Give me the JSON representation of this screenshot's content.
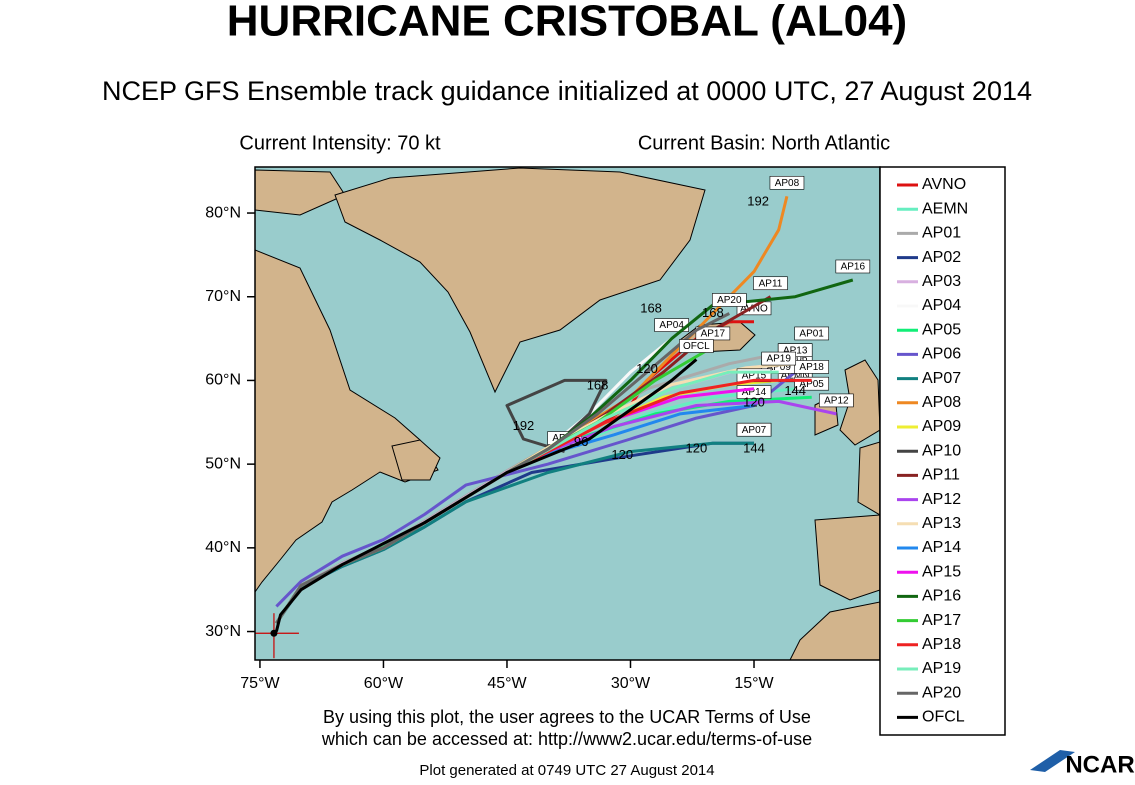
{
  "chart_data": {
    "type": "track-map",
    "title": "HURRICANE CRISTOBAL (AL04)",
    "subtitle": "NCEP GFS Ensemble track guidance initialized at 0000 UTC, 27 August 2014",
    "intensity_label": "Current Intensity: 70 kt",
    "basin_label": "Current Basin: North Atlantic",
    "terms_line1": "By using this plot, the user agrees to the UCAR Terms of Use",
    "terms_line2": "which can be accessed at: http://www2.ucar.edu/terms-of-use",
    "generated": "Plot generated at 0749 UTC   27 August 2014",
    "logo": "NCAR",
    "xlim": [
      -75.6,
      0.3
    ],
    "ylim": [
      26.6,
      85.5
    ],
    "xticks": [
      {
        "value": -75,
        "label": "75°W"
      },
      {
        "value": -60,
        "label": "60°W"
      },
      {
        "value": -45,
        "label": "45°W"
      },
      {
        "value": -30,
        "label": "30°W"
      },
      {
        "value": -15,
        "label": "15°W"
      }
    ],
    "yticks": [
      {
        "value": 30,
        "label": "30°N"
      },
      {
        "value": 40,
        "label": "40°N"
      },
      {
        "value": 50,
        "label": "50°N"
      },
      {
        "value": 60,
        "label": "60°N"
      },
      {
        "value": 70,
        "label": "70°N"
      },
      {
        "value": 80,
        "label": "80°N"
      }
    ],
    "current_position": {
      "lon": -73.3,
      "lat": 29.8
    },
    "series": [
      {
        "name": "AVNO",
        "color": "#dd1111",
        "lon": [
          -73,
          -70,
          -65,
          -60,
          -55,
          -50,
          -45,
          -40,
          -35,
          -30,
          -28,
          -25,
          -22,
          -18,
          -15
        ],
        "lat": [
          31,
          35.5,
          38,
          40,
          43,
          46,
          49,
          51.5,
          54,
          57,
          60,
          62.5,
          65,
          67,
          67
        ]
      },
      {
        "name": "AEMN",
        "color": "#66eec0",
        "lon": [
          -73,
          -70,
          -65,
          -60,
          -55,
          -50,
          -45,
          -40,
          -35,
          -28,
          -20,
          -10
        ],
        "lat": [
          31,
          35.5,
          38,
          40,
          43,
          46,
          49,
          51.5,
          53,
          56,
          58,
          59
        ]
      },
      {
        "name": "AP01",
        "color": "#aaaaaa",
        "lon": [
          -73,
          -70,
          -65,
          -60,
          -55,
          -50,
          -45,
          -40,
          -34,
          -28,
          -18,
          -8
        ],
        "lat": [
          31,
          35.5,
          38.2,
          40.3,
          43.2,
          46.2,
          49.2,
          52,
          55.5,
          59,
          62,
          64
        ]
      },
      {
        "name": "AP02",
        "color": "#1f3a8a",
        "lon": [
          -73,
          -70,
          -65,
          -60,
          -55,
          -50,
          -42,
          -30,
          -20,
          -15
        ],
        "lat": [
          31,
          35.3,
          37.8,
          39.8,
          42.5,
          45.5,
          49,
          51,
          52.5,
          52.5
        ]
      },
      {
        "name": "AP03",
        "color": "#d8b0e0",
        "lon": [
          -73,
          -70,
          -65,
          -60,
          -55,
          -50,
          -45,
          -40,
          -33,
          -25,
          -16,
          -10
        ],
        "lat": [
          31,
          35.5,
          38.1,
          40.2,
          43.1,
          46.1,
          49.1,
          51.8,
          55.5,
          59,
          61.5,
          62
        ]
      },
      {
        "name": "AP04",
        "color": "#f8f8f8",
        "lon": [
          -73,
          -70,
          -65,
          -60,
          -55,
          -50,
          -45,
          -40,
          -35,
          -30,
          -25
        ],
        "lat": [
          31,
          35.4,
          38,
          40,
          43,
          46,
          49,
          52,
          56,
          61,
          65
        ]
      },
      {
        "name": "AP05",
        "color": "#11ee77",
        "lon": [
          -73,
          -70,
          -65,
          -60,
          -55,
          -50,
          -45,
          -40,
          -35,
          -27,
          -18,
          -8
        ],
        "lat": [
          31,
          35.5,
          38,
          40.1,
          43,
          46,
          49,
          51.6,
          53.5,
          56,
          57.5,
          58
        ]
      },
      {
        "name": "AP06",
        "color": "#6655cc",
        "lon": [
          -73,
          -70,
          -65,
          -60,
          -55,
          -50,
          -40,
          -30,
          -22,
          -15,
          -10
        ],
        "lat": [
          33,
          36,
          39,
          41,
          44,
          47.5,
          50,
          53,
          55.5,
          57,
          61
        ]
      },
      {
        "name": "AP07",
        "color": "#118080",
        "lon": [
          -73,
          -70,
          -65,
          -60,
          -55,
          -50,
          -40,
          -30,
          -20,
          -15
        ],
        "lat": [
          31,
          35.3,
          37.8,
          39.8,
          42.5,
          45.5,
          49,
          51.5,
          52.5,
          52.5
        ]
      },
      {
        "name": "AP08",
        "color": "#ee8822",
        "lon": [
          -73,
          -70,
          -65,
          -60,
          -55,
          -50,
          -45,
          -40,
          -30,
          -25,
          -20,
          -15,
          -12,
          -11
        ],
        "lat": [
          31,
          35.5,
          38,
          40,
          43,
          46,
          49,
          52,
          58,
          63,
          68,
          73,
          78,
          82
        ]
      },
      {
        "name": "AP09",
        "color": "#eeee33",
        "lon": [
          -73,
          -70,
          -65,
          -60,
          -55,
          -50,
          -45,
          -40,
          -34,
          -26,
          -18,
          -12
        ],
        "lat": [
          31,
          35.5,
          38,
          40,
          43,
          46,
          49,
          51.5,
          54.5,
          58,
          59.5,
          60
        ]
      },
      {
        "name": "AP10",
        "color": "#444444",
        "lon": [
          -73,
          -70,
          -65,
          -60,
          -55,
          -50,
          -45,
          -40,
          -35,
          -33,
          -38,
          -45,
          -43,
          -38
        ],
        "lat": [
          31,
          35.5,
          38,
          40,
          43,
          46,
          49,
          51.5,
          56,
          60,
          60,
          57,
          53,
          51.5
        ]
      },
      {
        "name": "AP11",
        "color": "#882222",
        "lon": [
          -73,
          -70,
          -65,
          -60,
          -55,
          -50,
          -45,
          -40,
          -33,
          -26,
          -20,
          -13
        ],
        "lat": [
          31,
          35.5,
          38,
          40,
          43,
          46,
          49,
          51.6,
          56,
          61,
          66,
          70
        ]
      },
      {
        "name": "AP12",
        "color": "#aa44ee",
        "lon": [
          -73,
          -70,
          -65,
          -60,
          -55,
          -50,
          -45,
          -40,
          -32,
          -22,
          -12,
          -5
        ],
        "lat": [
          31,
          35.5,
          38,
          40,
          43,
          46,
          49,
          51.5,
          54.5,
          57,
          57.5,
          56
        ]
      },
      {
        "name": "AP13",
        "color": "#f5deb3",
        "lon": [
          -73,
          -70,
          -65,
          -60,
          -55,
          -50,
          -45,
          -40,
          -33,
          -25,
          -16,
          -10
        ],
        "lat": [
          31,
          35.5,
          38,
          40,
          43,
          46,
          49,
          52,
          55.8,
          59.5,
          61.5,
          62
        ]
      },
      {
        "name": "AP14",
        "color": "#2288ee",
        "lon": [
          -73,
          -70,
          -65,
          -60,
          -55,
          -50,
          -45,
          -40,
          -32,
          -24,
          -15
        ],
        "lat": [
          31,
          35.5,
          38,
          40,
          43,
          46,
          49,
          51.2,
          53.5,
          56,
          57
        ]
      },
      {
        "name": "AP15",
        "color": "#ee11ee",
        "lon": [
          -73,
          -70,
          -65,
          -60,
          -55,
          -50,
          -45,
          -40,
          -33,
          -24,
          -15
        ],
        "lat": [
          31,
          35.5,
          38,
          40,
          43,
          46,
          49,
          51.5,
          55,
          58,
          59
        ]
      },
      {
        "name": "AP16",
        "color": "#116611",
        "lon": [
          -73,
          -70,
          -65,
          -60,
          -55,
          -50,
          -45,
          -40,
          -35,
          -30,
          -25,
          -20,
          -10,
          -3
        ],
        "lat": [
          31,
          35.5,
          38,
          40,
          43,
          46,
          49,
          51.8,
          55.5,
          60,
          65,
          69,
          70,
          72
        ]
      },
      {
        "name": "AP17",
        "color": "#33cc33",
        "lon": [
          -73,
          -70,
          -65,
          -60,
          -55,
          -50,
          -45,
          -40,
          -34,
          -27,
          -20
        ],
        "lat": [
          31,
          35.5,
          38,
          40,
          43,
          46,
          49,
          51.8,
          55,
          60,
          64
        ]
      },
      {
        "name": "AP18",
        "color": "#ee2222",
        "lon": [
          -73,
          -70,
          -65,
          -60,
          -55,
          -50,
          -45,
          -40,
          -33,
          -24,
          -15,
          -8
        ],
        "lat": [
          31,
          35.5,
          38,
          40,
          43,
          46,
          49,
          51.5,
          55,
          58.5,
          60,
          60
        ]
      },
      {
        "name": "AP19",
        "color": "#77eebb",
        "lon": [
          -73,
          -70,
          -65,
          -60,
          -55,
          -50,
          -45,
          -40,
          -33,
          -25,
          -18,
          -12
        ],
        "lat": [
          31,
          35.5,
          38,
          40,
          43,
          46,
          49,
          51.7,
          55.5,
          59,
          61,
          61
        ]
      },
      {
        "name": "AP20",
        "color": "#666666",
        "lon": [
          -73,
          -70,
          -65,
          -60,
          -55,
          -50,
          -45,
          -40,
          -34,
          -28,
          -22,
          -18
        ],
        "lat": [
          31,
          35.5,
          38,
          40,
          43,
          46,
          49,
          51.8,
          56,
          61,
          66,
          68
        ]
      },
      {
        "name": "OFCL",
        "color": "#000000",
        "lon": [
          -73,
          -72.5,
          -70,
          -65,
          -61,
          -55,
          -50,
          -45,
          -35,
          -25,
          -22
        ],
        "lat": [
          30,
          32,
          35,
          38,
          40,
          43,
          46,
          49,
          53,
          60,
          62.5
        ]
      }
    ],
    "hour_labels": [
      {
        "text": "192",
        "lon": -14.5,
        "lat": 81.3
      },
      {
        "text": "168",
        "lon": -34,
        "lat": 59.3
      },
      {
        "text": "192",
        "lon": -43,
        "lat": 54.5
      },
      {
        "text": "168",
        "lon": -27.5,
        "lat": 68.5
      },
      {
        "text": "168",
        "lon": -20,
        "lat": 68
      },
      {
        "text": "120",
        "lon": -15,
        "lat": 57.3
      },
      {
        "text": "144",
        "lon": -15,
        "lat": 51.8
      },
      {
        "text": "120",
        "lon": -22,
        "lat": 51.8
      },
      {
        "text": "120",
        "lon": -31,
        "lat": 51
      },
      {
        "text": "96",
        "lon": -36,
        "lat": 52.6
      },
      {
        "text": "144",
        "lon": -10,
        "lat": 58.7
      },
      {
        "text": "120",
        "lon": -28,
        "lat": 61.3
      }
    ]
  }
}
